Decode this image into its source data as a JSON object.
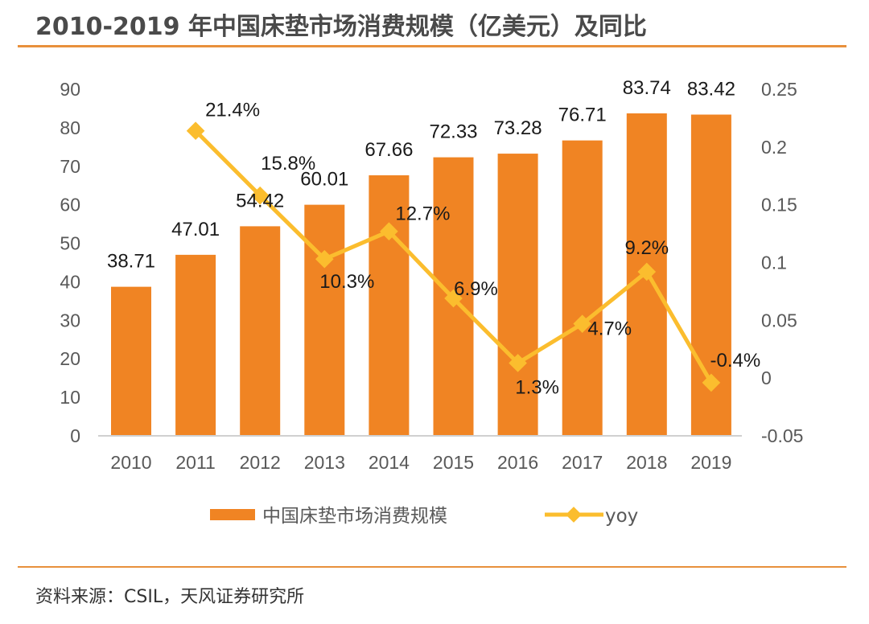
{
  "title": "2010-2019 年中国床垫市场消费规模（亿美元）及同比",
  "source": "资料来源：CSIL，天风证券研究所",
  "colors": {
    "bar": "#f08423",
    "line": "#fbbd2e",
    "rule": "#e8903c"
  },
  "chart_data": {
    "type": "bar",
    "title": "2010-2019 年中国床垫市场消费规模（亿美元）及同比",
    "categories": [
      "2010",
      "2011",
      "2012",
      "2013",
      "2014",
      "2015",
      "2016",
      "2017",
      "2018",
      "2019"
    ],
    "series": [
      {
        "name": "中国床垫市场消费规模",
        "type": "bar",
        "axis": "left",
        "values": [
          38.71,
          47.01,
          54.42,
          60.01,
          67.66,
          72.33,
          73.28,
          76.71,
          83.74,
          83.42
        ],
        "labels": [
          "38.71",
          "47.01",
          "54.42",
          "60.01",
          "67.66",
          "72.33",
          "73.28",
          "76.71",
          "83.74",
          "83.42"
        ]
      },
      {
        "name": "yoy",
        "type": "line",
        "axis": "right",
        "values": [
          null,
          0.214,
          0.158,
          0.103,
          0.127,
          0.069,
          0.013,
          0.047,
          0.092,
          -0.004
        ],
        "labels": [
          null,
          "21.4%",
          "15.8%",
          "10.3%",
          "12.7%",
          "6.9%",
          "1.3%",
          "4.7%",
          "9.2%",
          "-0.4%"
        ]
      }
    ],
    "left_axis": {
      "range": [
        0,
        90
      ],
      "ticks": [
        "0",
        "10",
        "20",
        "30",
        "40",
        "50",
        "60",
        "70",
        "80",
        "90"
      ]
    },
    "right_axis": {
      "range": [
        -0.05,
        0.25
      ],
      "ticks": [
        "-0.05",
        "0",
        "0.05",
        "0.1",
        "0.15",
        "0.2",
        "0.25"
      ]
    },
    "legend": {
      "position": "bottom",
      "entries": [
        "中国床垫市场消费规模",
        "yoy"
      ]
    },
    "grid": false
  }
}
